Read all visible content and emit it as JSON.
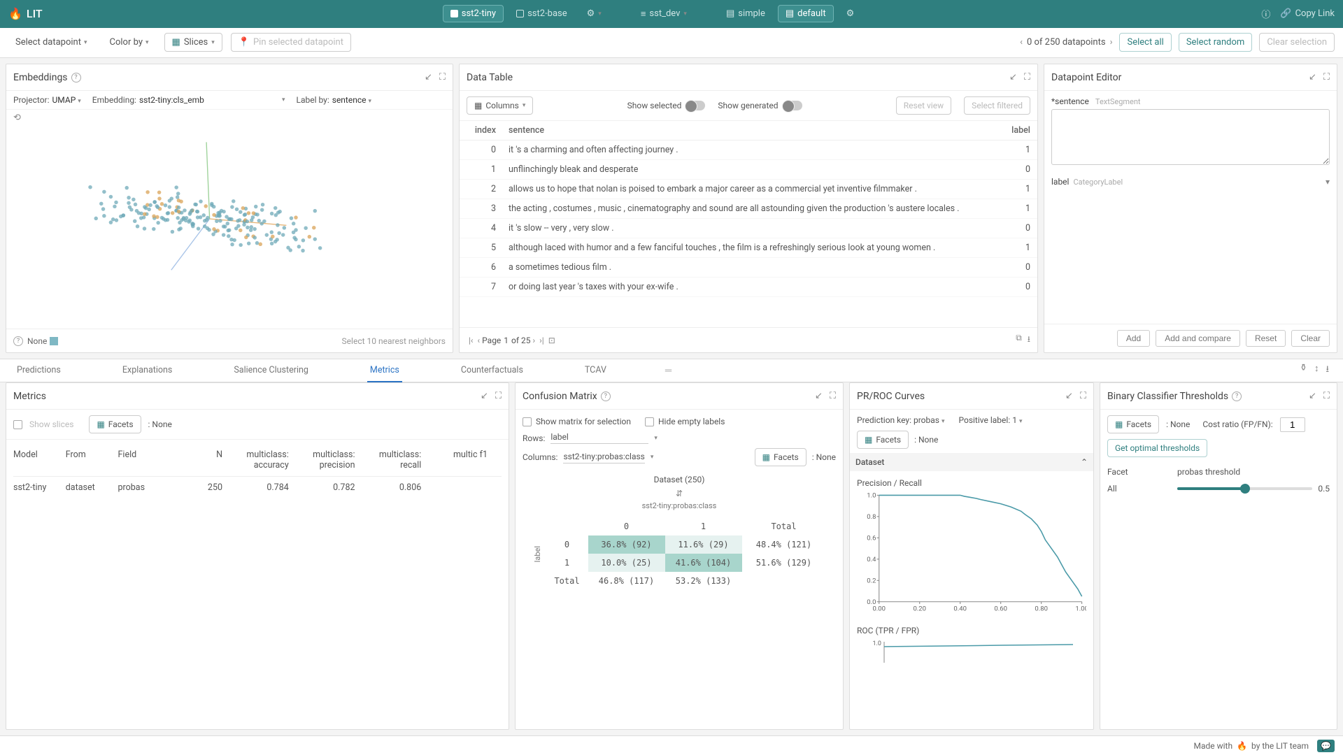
{
  "header": {
    "app_name": "LIT",
    "models": [
      {
        "name": "sst2-tiny",
        "checked": true,
        "active": true
      },
      {
        "name": "sst2-base",
        "checked": false,
        "active": false
      }
    ],
    "dataset": "sst_dev",
    "layouts": [
      {
        "name": "simple",
        "active": false
      },
      {
        "name": "default",
        "active": true
      }
    ],
    "copy_link": "Copy Link"
  },
  "subheader": {
    "select_datapoint": "Select datapoint",
    "color_by": "Color by",
    "slices": "Slices",
    "pin": "Pin selected datapoint",
    "count": "0 of 250 datapoints",
    "select_all": "Select all",
    "select_random": "Select random",
    "clear": "Clear selection"
  },
  "embeddings": {
    "title": "Embeddings",
    "projector_label": "Projector:",
    "projector": "UMAP",
    "embedding_label": "Embedding:",
    "embedding": "sst2-tiny:cls_emb",
    "labelby_label": "Label by:",
    "labelby": "sentence",
    "footer_left": "None",
    "footer_right": "Select 10 nearest neighbors",
    "scatter": {
      "n_points": 220,
      "center_x": 0.45,
      "center_y": 0.52,
      "spread_x": 0.32,
      "spread_y": 0.14,
      "color": "#6faab8",
      "color2": "#d9a357",
      "axis_color_x": "#e8b77a",
      "axis_color_y": "#9ed29a",
      "axis_color_z": "#a9c4e8"
    }
  },
  "datatable": {
    "title": "Data Table",
    "columns_btn": "Columns",
    "show_selected": "Show selected",
    "show_generated": "Show generated",
    "reset_view": "Reset view",
    "select_filtered": "Select filtered",
    "headers": {
      "index": "index",
      "sentence": "sentence",
      "label": "label"
    },
    "rows": [
      {
        "i": 0,
        "s": "it 's a charming and often affecting journey .",
        "l": 1
      },
      {
        "i": 1,
        "s": "unflinchingly bleak and desperate",
        "l": 0
      },
      {
        "i": 2,
        "s": "allows us to hope that nolan is poised to embark a major career as a commercial yet inventive filmmaker .",
        "l": 1
      },
      {
        "i": 3,
        "s": "the acting , costumes , music , cinematography and sound are all astounding given the production 's austere locales .",
        "l": 1
      },
      {
        "i": 4,
        "s": "it 's slow -- very , very slow .",
        "l": 0
      },
      {
        "i": 5,
        "s": "although laced with humor and a few fanciful touches , the film is a refreshingly serious look at young women .",
        "l": 1
      },
      {
        "i": 6,
        "s": "a sometimes tedious film .",
        "l": 0
      },
      {
        "i": 7,
        "s": "or doing last year 's taxes with your ex-wife .",
        "l": 0
      }
    ],
    "page_label": "Page",
    "page": "1",
    "of_pages": "of 25"
  },
  "editor": {
    "title": "Datapoint Editor",
    "sentence_label": "*sentence",
    "sentence_type": "TextSegment",
    "label_label": "label",
    "label_type": "CategoryLabel",
    "btn_add": "Add",
    "btn_add_compare": "Add and compare",
    "btn_reset": "Reset",
    "btn_clear": "Clear"
  },
  "tabs": {
    "items": [
      "Predictions",
      "Explanations",
      "Salience Clustering",
      "Metrics",
      "Counterfactuals",
      "TCAV"
    ],
    "active": "Metrics"
  },
  "metrics": {
    "title": "Metrics",
    "show_slices": "Show slices",
    "facets": "Facets",
    "facets_val": ": None",
    "headers": [
      "Model",
      "From",
      "Field",
      "N",
      "multiclass: accuracy",
      "multiclass: precision",
      "multiclass: recall",
      "multic f1"
    ],
    "row": {
      "model": "sst2-tiny",
      "from": "dataset",
      "field": "probas",
      "n": "250",
      "acc": "0.784",
      "prec": "0.782",
      "rec": "0.806"
    }
  },
  "confusion": {
    "title": "Confusion Matrix",
    "show_sel": "Show matrix for selection",
    "hide_empty": "Hide empty labels",
    "rows_label": "Rows:",
    "rows_val": "label",
    "cols_label": "Columns:",
    "cols_val": "sst2-tiny:probas:class",
    "facets": "Facets",
    "facets_val": ": None",
    "matrix_title": "Dataset (250)",
    "col_header": "sst2-tiny:probas:class",
    "row_header": "label",
    "col_labels": [
      "0",
      "1",
      "Total"
    ],
    "row_labels": [
      "0",
      "1",
      "Total"
    ],
    "cells": [
      [
        "36.8%  (92)",
        "11.6%  (29)",
        "48.4% (121)"
      ],
      [
        "10.0%  (25)",
        "41.6% (104)",
        "51.6% (129)"
      ],
      [
        "46.8% (117)",
        "53.2% (133)",
        ""
      ]
    ]
  },
  "prroc": {
    "title": "PR/ROC Curves",
    "pred_key_label": "Prediction key:",
    "pred_key": "probas",
    "pos_label_label": "Positive label:",
    "pos_label": "1",
    "facets": "Facets",
    "facets_val": ": None",
    "dataset_label": "Dataset",
    "pr_title": "Precision / Recall",
    "roc_title": "ROC (TPR / FPR)",
    "pr_curve": {
      "x": [
        0,
        0.05,
        0.1,
        0.15,
        0.2,
        0.25,
        0.3,
        0.35,
        0.4,
        0.42,
        0.45,
        0.48,
        0.5,
        0.55,
        0.6,
        0.65,
        0.7,
        0.72,
        0.75,
        0.78,
        0.8,
        0.82,
        0.85,
        0.88,
        0.9,
        0.92,
        0.95,
        0.98,
        1.0
      ],
      "y": [
        1.0,
        1.0,
        1.0,
        1.0,
        1.0,
        1.0,
        1.0,
        1.0,
        1.0,
        0.99,
        0.98,
        0.97,
        0.96,
        0.94,
        0.92,
        0.89,
        0.85,
        0.82,
        0.78,
        0.72,
        0.66,
        0.58,
        0.5,
        0.42,
        0.35,
        0.28,
        0.2,
        0.12,
        0.05
      ],
      "xlim": [
        0,
        1
      ],
      "ylim": [
        0,
        1
      ],
      "xticks": [
        0,
        0.2,
        0.4,
        0.6,
        0.8,
        1.0
      ],
      "yticks": [
        0,
        0.2,
        0.4,
        0.6,
        0.8,
        1.0
      ],
      "color": "#4a9aa8"
    }
  },
  "thresholds": {
    "title": "Binary Classifier Thresholds",
    "facets": "Facets",
    "facets_val": ": None",
    "cost_label": "Cost ratio (FP/FN):",
    "cost_val": "1",
    "get_optimal": "Get optimal thresholds",
    "col_facet": "Facet",
    "col_thr": "probas threshold",
    "row_label": "All",
    "thr_value": 0.5
  },
  "footer": {
    "text_pre": "Made with",
    "text_post": "by the LIT team"
  }
}
